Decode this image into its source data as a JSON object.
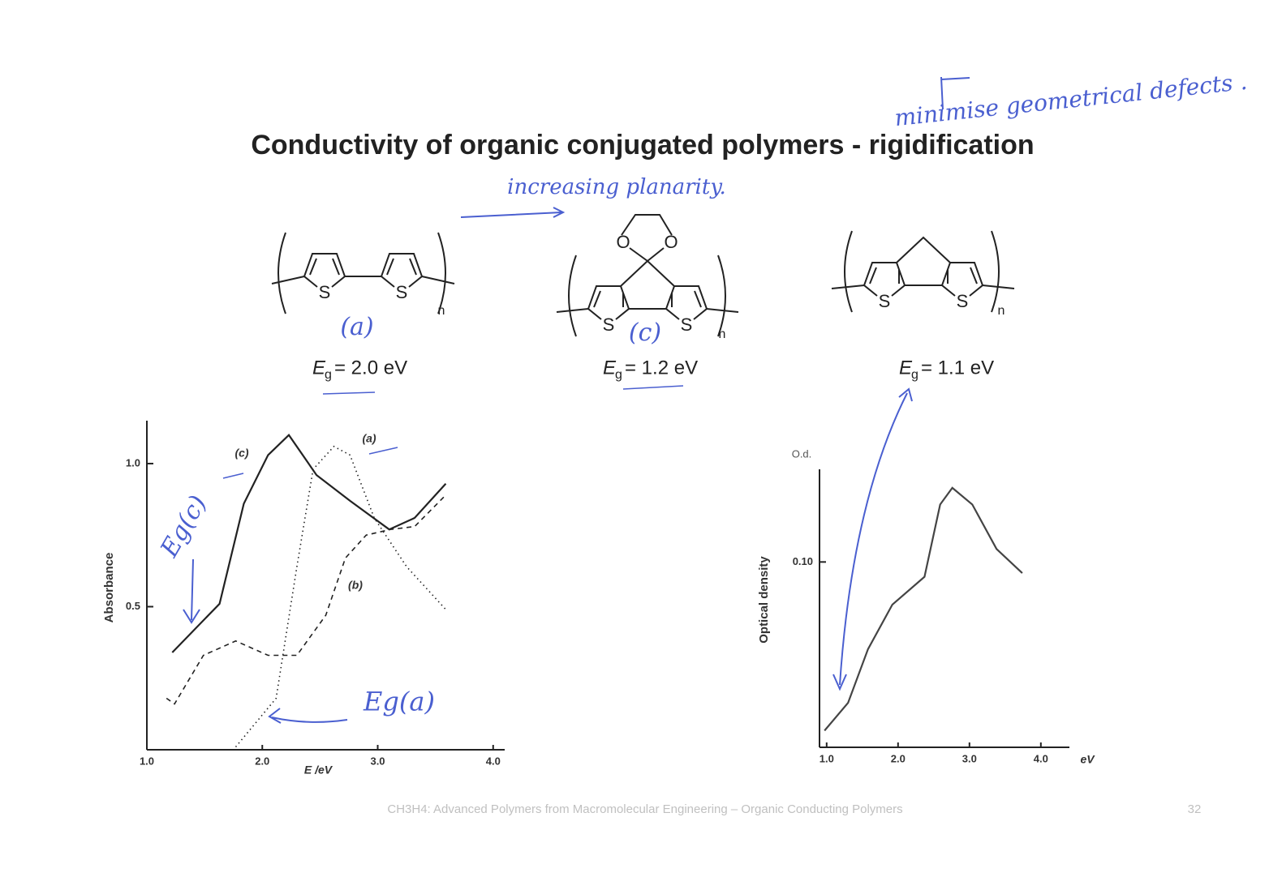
{
  "title": "Conductivity of organic conjugated polymers - rigidification",
  "structure_labels": {
    "sulfur": "S",
    "oxygen": "O",
    "repeat": "n",
    "gap_symbol": "E",
    "gap_subscript": "g"
  },
  "polymers": [
    {
      "energy_gap": "= 2.0 eV"
    },
    {
      "energy_gap": "= 1.2 eV"
    },
    {
      "energy_gap": "= 1.1 eV"
    }
  ],
  "annotations": {
    "top_right": "minimise geometrical defects .",
    "planarity": "increasing planarity.",
    "mark_a": "(a)",
    "mark_c": "(c)",
    "eg_c": "Eg(c)",
    "eg_a": "Eg(a)"
  },
  "footer": {
    "course": "CH3H4: Advanced Polymers from Macromolecular Engineering – Organic Conducting Polymers",
    "page": "32"
  },
  "chart_data": [
    {
      "type": "line",
      "x_label": "E /eV",
      "y_label": "Absorbance",
      "xlim": [
        1.0,
        4.1
      ],
      "ylim": [
        0,
        1.15
      ],
      "xticks": [
        {
          "value": 1,
          "label": "1.0"
        },
        {
          "value": 2,
          "label": "2.0"
        },
        {
          "value": 3,
          "label": "3.0"
        },
        {
          "value": 4,
          "label": "4.0"
        }
      ],
      "yticks": [
        0.5,
        {
          "value": 1,
          "label": "1.0"
        }
      ],
      "series": [
        {
          "name": "(c)",
          "color": "#222222",
          "line_style": "solid",
          "x": [
            1.22,
            1.63,
            1.84,
            2.05,
            2.23,
            2.47,
            2.76,
            3.1,
            3.32,
            3.59
          ],
          "values": [
            0.34,
            0.51,
            0.86,
            1.03,
            1.1,
            0.96,
            0.87,
            0.77,
            0.81,
            0.93
          ]
        },
        {
          "name": "(a)",
          "color": "#222222",
          "line_style": "dotted",
          "x": [
            1.77,
            2.12,
            2.3,
            2.44,
            2.62,
            2.76,
            2.97,
            3.25,
            3.59
          ],
          "values": [
            0.01,
            0.18,
            0.64,
            0.98,
            1.06,
            1.03,
            0.81,
            0.64,
            0.49
          ]
        },
        {
          "name": "(b)",
          "color": "#222222",
          "line_style": "dashed",
          "x": [
            1.17,
            1.24,
            1.49,
            1.77,
            2.05,
            2.3,
            2.55,
            2.72,
            2.9,
            3.11,
            3.32,
            3.59
          ],
          "values": [
            0.18,
            0.16,
            0.33,
            0.38,
            0.33,
            0.33,
            0.47,
            0.67,
            0.75,
            0.77,
            0.78,
            0.89
          ]
        }
      ]
    },
    {
      "type": "line",
      "x_label": "eV",
      "y_label": "Optical density",
      "y_unit": "O.d.",
      "xlim": [
        0.9,
        4.4
      ],
      "ylim": [
        0,
        0.15
      ],
      "xticks": [
        {
          "value": 1,
          "label": "1.0"
        },
        {
          "value": 2,
          "label": "2.0"
        },
        {
          "value": 3,
          "label": "3.0"
        },
        {
          "value": 4,
          "label": "4.0"
        }
      ],
      "yticks": [
        {
          "value": 0.1,
          "label": "0.10"
        }
      ],
      "series": [
        {
          "color": "#444444",
          "line_style": "solid",
          "x": [
            0.97,
            1.3,
            1.58,
            1.92,
            2.37,
            2.59,
            2.76,
            3.04,
            3.38,
            3.74
          ],
          "values": [
            0.009,
            0.024,
            0.053,
            0.077,
            0.092,
            0.131,
            0.14,
            0.131,
            0.107,
            0.094
          ]
        }
      ]
    }
  ]
}
